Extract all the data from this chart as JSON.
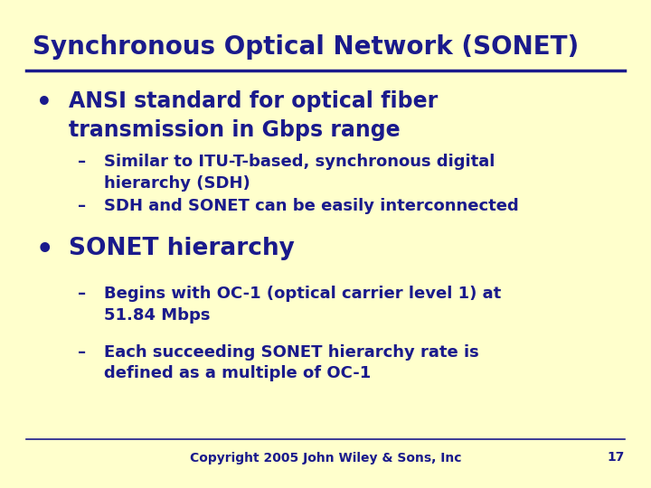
{
  "background_color": "#ffffcc",
  "title": "Synchronous Optical Network (SONET)",
  "title_color": "#1a1a8c",
  "title_fontsize": 20,
  "line_color": "#1a1a8c",
  "text_color": "#1a1a8c",
  "bullet1_text": "ANSI standard for optical fiber\ntransmission in Gbps range",
  "bullet1_fontsize": 17,
  "sub1a_text": "Similar to ITU-T-based, synchronous digital\nhierarchy (SDH)",
  "sub1b_text": "SDH and SONET can be easily interconnected",
  "sub_fontsize": 13,
  "bullet2_text": "SONET hierarchy",
  "bullet2_fontsize": 19,
  "sub2a_text": "Begins with OC-1 (optical carrier level 1) at\n51.84 Mbps",
  "sub2b_text": "Each succeeding SONET hierarchy rate is\ndefined as a multiple of OC-1",
  "footer_text": "Copyright 2005 John Wiley & Sons, Inc",
  "footer_page": "17",
  "footer_fontsize": 10
}
